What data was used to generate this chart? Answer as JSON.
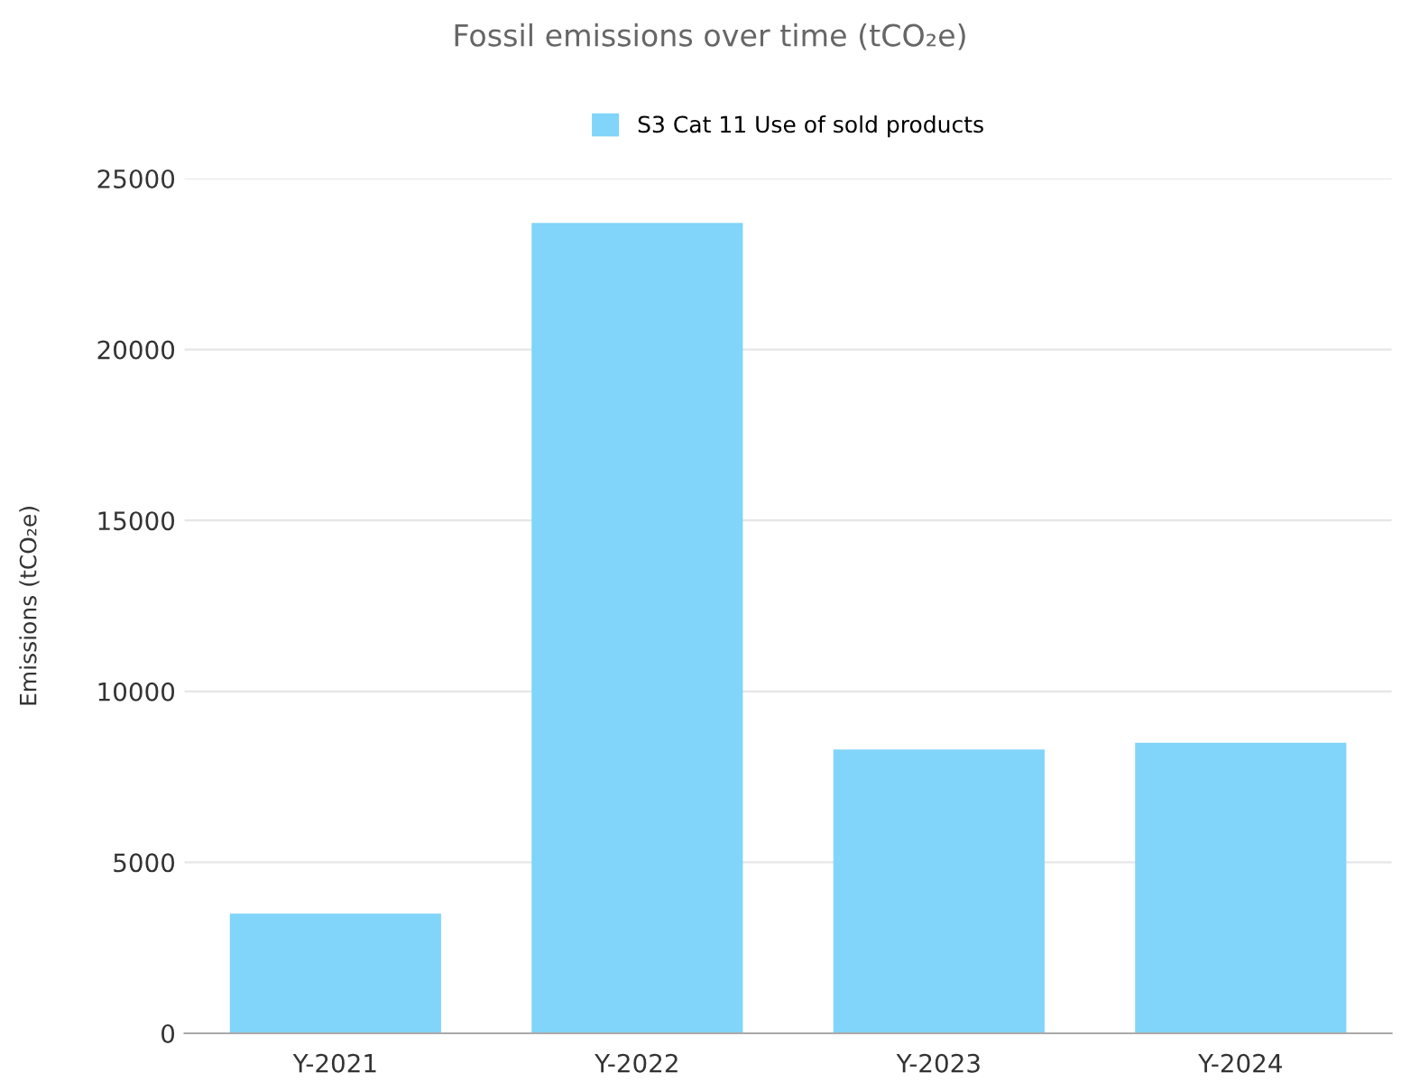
{
  "chart_data": {
    "type": "bar",
    "title": "Fossil emissions over time (tCO₂e)",
    "ylabel": "Emissions (tCO₂e)",
    "categories": [
      "Y-2021",
      "Y-2022",
      "Y-2023",
      "Y-2024"
    ],
    "series": [
      {
        "name": "S3 Cat 11 Use of sold products",
        "color": "#81d4fa",
        "values": [
          3500,
          23700,
          8300,
          8500
        ]
      }
    ],
    "ylim": [
      0,
      25000
    ],
    "yticks": [
      0,
      5000,
      10000,
      15000,
      20000,
      25000
    ],
    "grid": "y",
    "legend": "top"
  }
}
